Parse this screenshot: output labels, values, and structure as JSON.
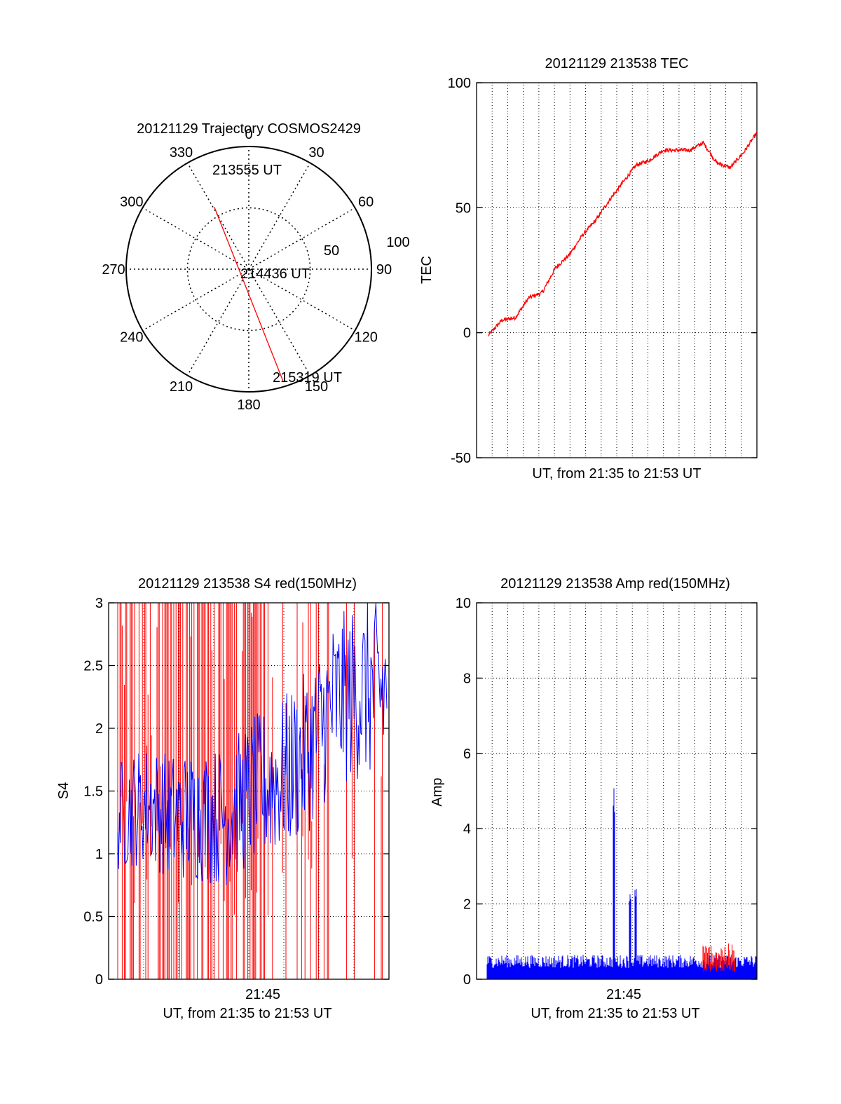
{
  "colors": {
    "red": "#ff0000",
    "blue": "#0000ff",
    "axis": "#000000"
  },
  "chart_data": [
    {
      "type": "polar",
      "title": "20121129 Trajectory COSMOS2429",
      "angle_labels": [
        "0",
        "30",
        "60",
        "90",
        "120",
        "150",
        "180",
        "210",
        "240",
        "270",
        "300",
        "330"
      ],
      "radial_ticks": [
        "50",
        "100"
      ],
      "radial_range": [
        0,
        100
      ],
      "grid": true,
      "series": [
        {
          "color": "red",
          "points": [
            {
              "azimuth": 331,
              "radius": 58
            },
            {
              "azimuth": 163,
              "radius": 95
            }
          ]
        }
      ],
      "annotations": [
        {
          "text": "213555 UT",
          "azimuth": 331,
          "radius": 58
        },
        {
          "text": "214436 UT",
          "azimuth": 0,
          "radius": 0
        },
        {
          "text": "215319 UT",
          "azimuth": 163,
          "radius": 95
        }
      ]
    },
    {
      "type": "line",
      "title": "20121129 213538 TEC",
      "xlabel": "UT, from 21:35 to 21:53 UT",
      "ylabel": "TEC",
      "ylim": [
        -50,
        100
      ],
      "yticks": [
        "-50",
        "0",
        "50",
        "100"
      ],
      "grid": true,
      "series": [
        {
          "color": "red",
          "x": [
            0,
            0.05,
            0.1,
            0.15,
            0.2,
            0.25,
            0.3,
            0.35,
            0.4,
            0.45,
            0.5,
            0.55,
            0.6,
            0.65,
            0.7,
            0.75,
            0.8,
            0.85,
            0.9,
            0.95,
            1.0
          ],
          "y": [
            -1,
            5,
            6,
            14,
            16,
            26,
            31,
            39,
            45,
            53,
            60,
            67,
            69,
            73,
            73,
            73,
            76,
            68,
            66,
            72,
            80
          ]
        }
      ]
    },
    {
      "type": "line",
      "title": "20121129 213538 S4 red(150MHz)",
      "xlabel": "UT, from 21:35 to 21:53 UT",
      "ylabel": "S4",
      "ylim": [
        0,
        3
      ],
      "yticks": [
        "0",
        "0.5",
        "1",
        "1.5",
        "2",
        "2.5",
        "3"
      ],
      "xticks": [
        "21:45"
      ],
      "grid": true,
      "series": [
        {
          "color": "red",
          "pattern": "dense spikes 0-3 throughout, sparser after 21:49"
        },
        {
          "color": "blue",
          "x": [
            0,
            0.1,
            0.2,
            0.3,
            0.4,
            0.5,
            0.6,
            0.7,
            0.8,
            0.9,
            1.0
          ],
          "y": [
            1.3,
            1.4,
            1.3,
            1.3,
            1.3,
            1.5,
            1.6,
            1.8,
            2.2,
            2.3,
            2.3
          ]
        }
      ]
    },
    {
      "type": "line",
      "title": "20121129 213538 Amp red(150MHz)",
      "xlabel": "UT, from 21:35 to 21:53 UT",
      "ylabel": "Amp",
      "ylim": [
        0,
        10
      ],
      "yticks": [
        "0",
        "2",
        "4",
        "6",
        "8",
        "10"
      ],
      "xticks": [
        "21:45"
      ],
      "grid": true,
      "series": [
        {
          "color": "blue",
          "baseline": 0.3,
          "peaks": [
            {
              "x": 0.47,
              "y": 5.1
            },
            {
              "x": 0.53,
              "y": 2.3
            },
            {
              "x": 0.55,
              "y": 2.5
            }
          ]
        },
        {
          "color": "red",
          "baseline": 0.6,
          "range": [
            0.8,
            0.92
          ]
        }
      ]
    }
  ]
}
